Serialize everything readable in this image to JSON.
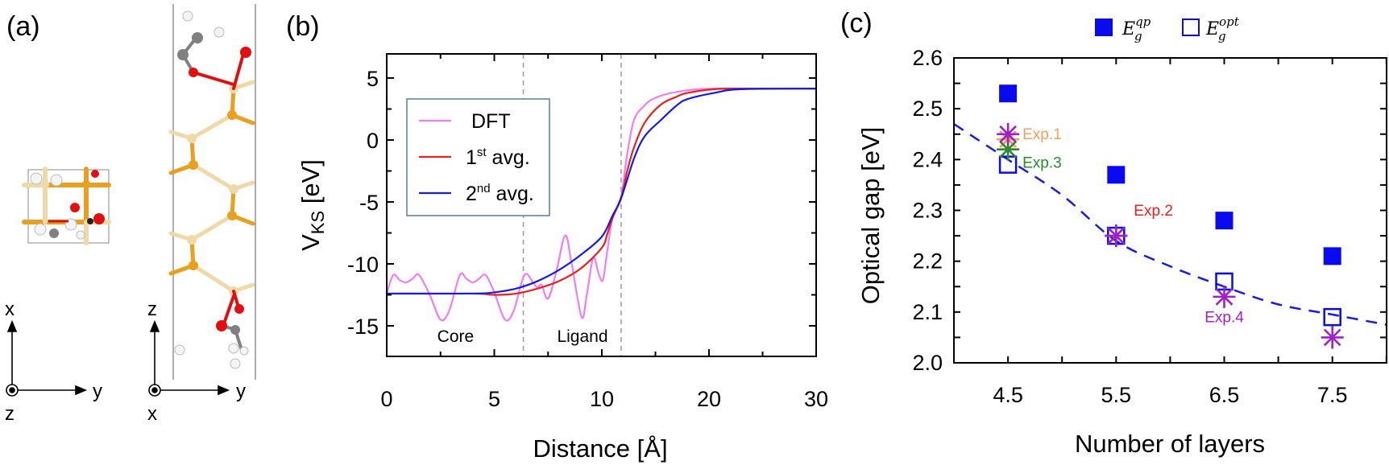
{
  "panel_labels": {
    "a": "(a)",
    "b": "(b)",
    "c": "(c)"
  },
  "panel_a": {
    "left_axes": {
      "up": "x",
      "right": "y",
      "out": "z"
    },
    "right_axes": {
      "up": "z",
      "right": "y",
      "out": "x"
    },
    "atom_colors": {
      "light_atom": "#f0d9a8",
      "dark_atom": "#e8a020",
      "oxygen": "#e01010",
      "carbon": "#808080",
      "hydrogen": "#f4f4f4"
    }
  },
  "chart_data": [
    {
      "type": "line",
      "panel": "b",
      "xlabel": "Distance [Å]",
      "ylabel_main": "V",
      "ylabel_sub": "KS",
      "ylabel_unit": " [eV]",
      "xlim": [
        0,
        30
      ],
      "x_axis_segments": [
        [
          0,
          10
        ],
        [
          10,
          30
        ]
      ],
      "x_ticks": [
        0,
        5,
        10,
        20,
        30
      ],
      "x_tick_labels": [
        "0",
        "5",
        "10",
        "20",
        "30"
      ],
      "ylim": [
        -17.5,
        7
      ],
      "y_ticks": [
        5,
        0,
        -5,
        -10,
        -15
      ],
      "y_tick_labels": [
        "5",
        "0",
        "-5",
        "-10",
        "-15"
      ],
      "grid": false,
      "legend_placement": "upper-left",
      "vlines_dashed": [
        6.35,
        11.8
      ],
      "region_labels": [
        {
          "text": "Core",
          "x": 3.2
        },
        {
          "text": "Ligand",
          "x": 9.1
        }
      ],
      "series": [
        {
          "name": "DFT",
          "name_sup": "",
          "name_rest": "",
          "color": "#f07ef0",
          "points": [
            [
              0,
              -12.4
            ],
            [
              0.3,
              -10.9
            ],
            [
              0.6,
              -11.3
            ],
            [
              0.9,
              -11.5
            ],
            [
              1.2,
              -11.2
            ],
            [
              1.5,
              -10.9
            ],
            [
              2.0,
              -12.5
            ],
            [
              2.5,
              -14.5
            ],
            [
              2.9,
              -13.8
            ],
            [
              3.4,
              -10.9
            ],
            [
              3.7,
              -11.2
            ],
            [
              4.0,
              -11.5
            ],
            [
              4.3,
              -11.2
            ],
            [
              4.6,
              -10.9
            ],
            [
              5.0,
              -12.3
            ],
            [
              5.5,
              -14.5
            ],
            [
              5.9,
              -13.8
            ],
            [
              6.4,
              -10.9
            ],
            [
              6.8,
              -11.5
            ],
            [
              7.0,
              -11.9
            ],
            [
              7.2,
              -11.7
            ],
            [
              7.5,
              -12.8
            ],
            [
              7.9,
              -10.5
            ],
            [
              8.3,
              -7.7
            ],
            [
              8.6,
              -10.0
            ],
            [
              9.06,
              -14.3
            ],
            [
              9.3,
              -12.5
            ],
            [
              9.6,
              -9.5
            ],
            [
              9.85,
              -10.8
            ],
            [
              10.1,
              -11.3
            ],
            [
              10.5,
              -9.0
            ],
            [
              11.0,
              -6.3
            ],
            [
              11.8,
              -4.7
            ],
            [
              12.3,
              -1.5
            ],
            [
              13,
              1.6
            ],
            [
              14,
              2.8
            ],
            [
              14.75,
              3.3
            ],
            [
              16,
              3.7
            ],
            [
              17.5,
              3.95
            ],
            [
              19,
              4.1
            ],
            [
              21,
              4.15
            ],
            [
              30,
              4.15
            ]
          ]
        },
        {
          "name": "1",
          "name_sup": "st",
          "name_rest": " avg.",
          "color": "#e82020",
          "points": [
            [
              0,
              -12.4
            ],
            [
              4,
              -12.4
            ],
            [
              5,
              -12.5
            ],
            [
              6,
              -12.4
            ],
            [
              7,
              -12.0
            ],
            [
              8,
              -11.4
            ],
            [
              9,
              -10.4
            ],
            [
              10,
              -8.7
            ],
            [
              10.5,
              -7.6
            ],
            [
              11,
              -6.3
            ],
            [
              11.8,
              -4.6
            ],
            [
              12.4,
              -2.4
            ],
            [
              13,
              -0.6
            ],
            [
              14,
              1.4
            ],
            [
              15.5,
              2.85
            ],
            [
              17,
              3.5
            ],
            [
              18,
              3.8
            ],
            [
              20.5,
              4.1
            ],
            [
              23,
              4.15
            ],
            [
              30,
              4.15
            ]
          ]
        },
        {
          "name": "2",
          "name_sup": "nd",
          "name_rest": " avg.",
          "color": "#1a1ae0",
          "points": [
            [
              0,
              -12.4
            ],
            [
              4,
              -12.4
            ],
            [
              5,
              -12.3
            ],
            [
              6,
              -12.0
            ],
            [
              7,
              -11.4
            ],
            [
              8,
              -10.5
            ],
            [
              9,
              -9.3
            ],
            [
              10,
              -7.8
            ],
            [
              11,
              -6.1
            ],
            [
              11.8,
              -4.7
            ],
            [
              13,
              -1.5
            ],
            [
              14,
              0.3
            ],
            [
              15.5,
              1.6
            ],
            [
              17,
              2.8
            ],
            [
              18,
              3.3
            ],
            [
              20.5,
              3.8
            ],
            [
              23,
              4.1
            ],
            [
              30,
              4.15
            ]
          ]
        }
      ]
    },
    {
      "type": "scatter",
      "panel": "c",
      "xlabel": "Number of layers",
      "ylabel": "Optical gap [eV]",
      "xlim": [
        4,
        8
      ],
      "x_ticks": [
        4.5,
        5.5,
        6.5,
        7.5
      ],
      "x_tick_labels": [
        "4.5",
        "5.5",
        "6.5",
        "7.5"
      ],
      "ylim": [
        2.0,
        2.6
      ],
      "y_ticks": [
        2.6,
        2.5,
        2.4,
        2.3,
        2.2,
        2.1,
        2.0
      ],
      "y_tick_labels": [
        "2.6",
        "2.5",
        "2.4",
        "2.3",
        "2.2",
        "2.1",
        "2.0"
      ],
      "grid": false,
      "legend_placement": "top-outside",
      "series": [
        {
          "name": "E",
          "sub": "g",
          "sup": "qp",
          "marker": "filled-square",
          "color": "#0a0af0",
          "x": [
            4.5,
            5.5,
            6.5,
            7.5
          ],
          "y": [
            2.53,
            2.37,
            2.28,
            2.21
          ]
        },
        {
          "name": "E",
          "sub": "g",
          "sup": "opt",
          "marker": "open-square",
          "color": "#0a0af0",
          "x": [
            4.5,
            5.5,
            6.5,
            7.5
          ],
          "y": [
            2.39,
            2.25,
            2.16,
            2.09
          ]
        }
      ],
      "experiments": [
        {
          "label": "Exp.1",
          "color": "#f0a060",
          "x": [
            4.5
          ],
          "y": [
            2.44
          ]
        },
        {
          "label": "Exp.3",
          "color": "#2a8a2a",
          "x": [
            4.5
          ],
          "y": [
            2.42
          ]
        },
        {
          "label": "Exp.2",
          "color": "#e82020",
          "x": [
            5.5
          ],
          "y": [
            2.25
          ]
        },
        {
          "label": "Exp.4",
          "color": "#a020c8",
          "x": [
            4.5,
            5.5,
            6.5,
            7.5
          ],
          "y": [
            2.45,
            2.25,
            2.13,
            2.05
          ]
        }
      ],
      "fit_curve": {
        "style": "dashed",
        "color": "#1a1ae0",
        "points": [
          [
            4.0,
            2.47
          ],
          [
            4.5,
            2.4
          ],
          [
            5.0,
            2.33
          ],
          [
            5.5,
            2.24
          ],
          [
            6.0,
            2.19
          ],
          [
            6.5,
            2.15
          ],
          [
            7.0,
            2.115
          ],
          [
            7.5,
            2.095
          ],
          [
            8.0,
            2.075
          ]
        ]
      }
    }
  ]
}
